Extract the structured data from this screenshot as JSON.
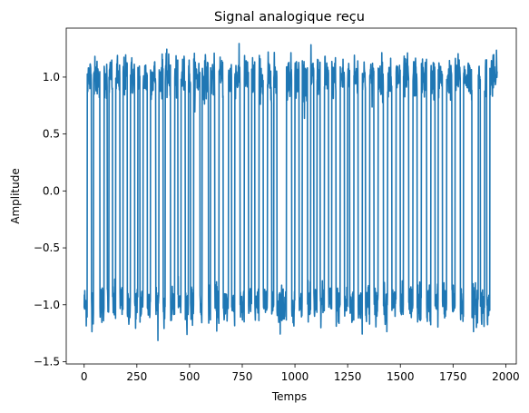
{
  "chart_data": {
    "type": "line",
    "title": "Signal analogique reçu",
    "xlabel": "Temps",
    "ylabel": "Amplitude",
    "xlim": [
      -85,
      2050
    ],
    "ylim": [
      -1.52,
      1.43
    ],
    "xticks": [
      0,
      250,
      500,
      750,
      1000,
      1250,
      1500,
      1750,
      2000
    ],
    "yticks": [
      -1.5,
      -1.0,
      -0.5,
      0.0,
      0.5,
      1.0
    ],
    "xtick_labels": [
      "0",
      "250",
      "500",
      "750",
      "1000",
      "1250",
      "1500",
      "1750",
      "2000"
    ],
    "ytick_labels": [
      "−1.5",
      "−1.0",
      "−0.5",
      "0.0",
      "0.5",
      "1.0"
    ],
    "grid": false,
    "series": [
      {
        "color": "#1f77b4",
        "levels": [
          -1,
          1
        ],
        "noise_std": 0.09,
        "n_points": 1960,
        "segments": [
          [
            0,
            15,
            -1
          ],
          [
            15,
            35,
            1
          ],
          [
            35,
            45,
            -1
          ],
          [
            45,
            75,
            1
          ],
          [
            75,
            95,
            -1
          ],
          [
            95,
            110,
            1
          ],
          [
            110,
            118,
            -1
          ],
          [
            118,
            135,
            1
          ],
          [
            135,
            150,
            -1
          ],
          [
            150,
            170,
            1
          ],
          [
            170,
            185,
            -1
          ],
          [
            185,
            205,
            1
          ],
          [
            205,
            220,
            -1
          ],
          [
            220,
            240,
            1
          ],
          [
            240,
            255,
            -1
          ],
          [
            255,
            265,
            1
          ],
          [
            265,
            280,
            -1
          ],
          [
            280,
            300,
            1
          ],
          [
            300,
            315,
            -1
          ],
          [
            315,
            340,
            1
          ],
          [
            340,
            355,
            -1
          ],
          [
            355,
            375,
            1
          ],
          [
            375,
            385,
            -1
          ],
          [
            385,
            410,
            1
          ],
          [
            410,
            430,
            -1
          ],
          [
            430,
            445,
            1
          ],
          [
            445,
            460,
            -1
          ],
          [
            460,
            480,
            1
          ],
          [
            480,
            495,
            -1
          ],
          [
            495,
            505,
            1
          ],
          [
            505,
            520,
            -1
          ],
          [
            520,
            550,
            1
          ],
          [
            550,
            560,
            -1
          ],
          [
            560,
            590,
            1
          ],
          [
            590,
            600,
            -1
          ],
          [
            600,
            620,
            1
          ],
          [
            620,
            640,
            -1
          ],
          [
            640,
            660,
            1
          ],
          [
            660,
            685,
            -1
          ],
          [
            685,
            700,
            1
          ],
          [
            700,
            715,
            -1
          ],
          [
            715,
            740,
            1
          ],
          [
            740,
            760,
            -1
          ],
          [
            760,
            780,
            1
          ],
          [
            780,
            795,
            -1
          ],
          [
            795,
            810,
            1
          ],
          [
            810,
            830,
            -1
          ],
          [
            830,
            850,
            1
          ],
          [
            850,
            870,
            -1
          ],
          [
            870,
            890,
            1
          ],
          [
            890,
            900,
            -1
          ],
          [
            900,
            915,
            1
          ],
          [
            915,
            960,
            -1
          ],
          [
            960,
            985,
            1
          ],
          [
            985,
            1000,
            -1
          ],
          [
            1000,
            1020,
            1
          ],
          [
            1020,
            1035,
            -1
          ],
          [
            1035,
            1060,
            1
          ],
          [
            1060,
            1075,
            -1
          ],
          [
            1075,
            1090,
            1
          ],
          [
            1090,
            1105,
            -1
          ],
          [
            1105,
            1120,
            1
          ],
          [
            1120,
            1140,
            -1
          ],
          [
            1140,
            1160,
            1
          ],
          [
            1160,
            1175,
            -1
          ],
          [
            1175,
            1195,
            1
          ],
          [
            1195,
            1215,
            -1
          ],
          [
            1215,
            1235,
            1
          ],
          [
            1235,
            1250,
            -1
          ],
          [
            1250,
            1260,
            1
          ],
          [
            1260,
            1280,
            -1
          ],
          [
            1280,
            1300,
            1
          ],
          [
            1300,
            1320,
            -1
          ],
          [
            1320,
            1335,
            1
          ],
          [
            1335,
            1355,
            -1
          ],
          [
            1355,
            1375,
            1
          ],
          [
            1375,
            1395,
            -1
          ],
          [
            1395,
            1420,
            1
          ],
          [
            1420,
            1440,
            -1
          ],
          [
            1440,
            1460,
            1
          ],
          [
            1460,
            1480,
            -1
          ],
          [
            1480,
            1500,
            1
          ],
          [
            1500,
            1515,
            -1
          ],
          [
            1515,
            1540,
            1
          ],
          [
            1540,
            1560,
            -1
          ],
          [
            1560,
            1580,
            1
          ],
          [
            1580,
            1600,
            -1
          ],
          [
            1600,
            1625,
            1
          ],
          [
            1625,
            1645,
            -1
          ],
          [
            1645,
            1665,
            1
          ],
          [
            1665,
            1680,
            -1
          ],
          [
            1680,
            1700,
            1
          ],
          [
            1700,
            1720,
            -1
          ],
          [
            1720,
            1745,
            1
          ],
          [
            1745,
            1760,
            -1
          ],
          [
            1760,
            1785,
            1
          ],
          [
            1785,
            1800,
            -1
          ],
          [
            1800,
            1840,
            1
          ],
          [
            1840,
            1870,
            -1
          ],
          [
            1870,
            1880,
            1
          ],
          [
            1880,
            1900,
            -1
          ],
          [
            1900,
            1910,
            1
          ],
          [
            1910,
            1925,
            -1
          ],
          [
            1925,
            1960,
            1
          ]
        ]
      }
    ]
  }
}
